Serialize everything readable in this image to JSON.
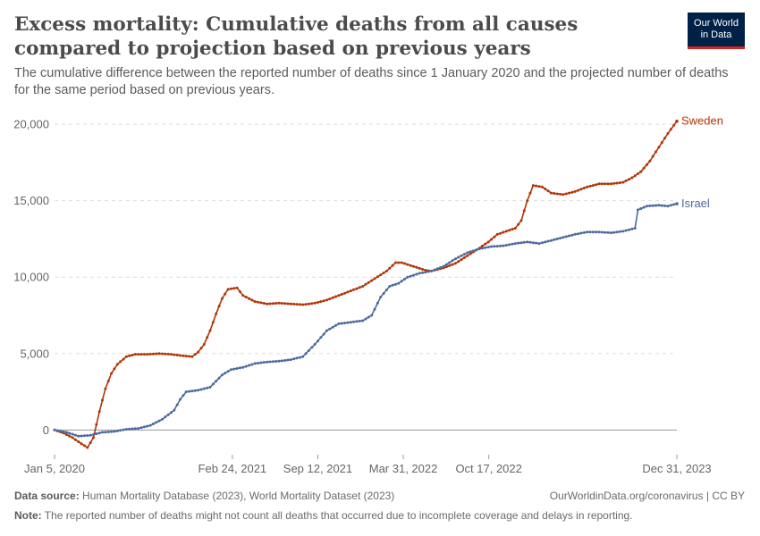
{
  "header": {
    "title": "Excess mortality: Cumulative deaths from all causes compared to projection based on previous years",
    "subtitle": "The cumulative difference between the reported number of deaths since 1 January 2020 and the projected number of deaths for the same period based on previous years.",
    "logo_line1": "Our World",
    "logo_line2": "in Data"
  },
  "footer": {
    "source_label": "Data source:",
    "source_text": "Human Mortality Database (2023), World Mortality Dataset (2023)",
    "credit": "OurWorldinData.org/coronavirus | CC BY",
    "note_label": "Note:",
    "note_text": "The reported number of deaths might not count all deaths that occurred due to incomplete coverage and delays in reporting."
  },
  "colors": {
    "sweden": "#b13507",
    "israel": "#4c6a9c",
    "grid": "#dddddd",
    "axis": "#999999",
    "tick_text": "#666666"
  },
  "chart_data": {
    "type": "line",
    "title": "Excess mortality: Cumulative deaths from all causes compared to projection based on previous years",
    "xlabel": "",
    "ylabel": "",
    "x_range": [
      "2020-01-05",
      "2023-12-31"
    ],
    "ylim": [
      -1500,
      21000
    ],
    "yticks": [
      0,
      5000,
      10000,
      15000,
      20000
    ],
    "ytick_labels": [
      "0",
      "5,000",
      "10,000",
      "15,000",
      "20,000"
    ],
    "xticks": [
      "2020-01-05",
      "2021-02-24",
      "2021-09-12",
      "2022-03-31",
      "2022-10-17",
      "2023-12-31"
    ],
    "xtick_labels": [
      "Jan 5, 2020",
      "Feb 24, 2021",
      "Sep 12, 2021",
      "Mar 31, 2022",
      "Oct 17, 2022",
      "Dec 31, 2023"
    ],
    "grid": "horizontal dashed",
    "legend": "labels at line ends (right)",
    "series": [
      {
        "name": "Sweden",
        "color": "#b13507",
        "points": [
          [
            "2020-01-05",
            0
          ],
          [
            "2020-01-26",
            -200
          ],
          [
            "2020-02-16",
            -500
          ],
          [
            "2020-03-08",
            -900
          ],
          [
            "2020-03-22",
            -1150
          ],
          [
            "2020-04-05",
            -500
          ],
          [
            "2020-04-19",
            1200
          ],
          [
            "2020-05-03",
            2700
          ],
          [
            "2020-05-17",
            3700
          ],
          [
            "2020-05-31",
            4300
          ],
          [
            "2020-06-21",
            4800
          ],
          [
            "2020-07-12",
            4950
          ],
          [
            "2020-08-09",
            4950
          ],
          [
            "2020-09-06",
            5000
          ],
          [
            "2020-10-04",
            4950
          ],
          [
            "2020-11-01",
            4850
          ],
          [
            "2020-11-22",
            4800
          ],
          [
            "2020-12-06",
            5100
          ],
          [
            "2020-12-20",
            5600
          ],
          [
            "2021-01-03",
            6500
          ],
          [
            "2021-01-17",
            7600
          ],
          [
            "2021-01-31",
            8600
          ],
          [
            "2021-02-14",
            9200
          ],
          [
            "2021-03-07",
            9300
          ],
          [
            "2021-03-21",
            8800
          ],
          [
            "2021-04-18",
            8400
          ],
          [
            "2021-05-16",
            8250
          ],
          [
            "2021-06-13",
            8300
          ],
          [
            "2021-07-11",
            8250
          ],
          [
            "2021-08-08",
            8200
          ],
          [
            "2021-09-05",
            8300
          ],
          [
            "2021-10-03",
            8500
          ],
          [
            "2021-10-31",
            8800
          ],
          [
            "2021-11-28",
            9100
          ],
          [
            "2021-12-26",
            9400
          ],
          [
            "2022-01-23",
            9900
          ],
          [
            "2022-02-20",
            10400
          ],
          [
            "2022-03-13",
            10950
          ],
          [
            "2022-03-27",
            10950
          ],
          [
            "2022-04-24",
            10700
          ],
          [
            "2022-05-22",
            10450
          ],
          [
            "2022-06-05",
            10400
          ],
          [
            "2022-07-03",
            10600
          ],
          [
            "2022-07-31",
            10900
          ],
          [
            "2022-08-28",
            11400
          ],
          [
            "2022-09-25",
            11900
          ],
          [
            "2022-10-16",
            12300
          ],
          [
            "2022-11-06",
            12800
          ],
          [
            "2022-11-27",
            13000
          ],
          [
            "2022-12-18",
            13200
          ],
          [
            "2023-01-01",
            13700
          ],
          [
            "2023-01-15",
            15000
          ],
          [
            "2023-01-29",
            16000
          ],
          [
            "2023-02-19",
            15900
          ],
          [
            "2023-03-12",
            15500
          ],
          [
            "2023-04-09",
            15400
          ],
          [
            "2023-05-07",
            15600
          ],
          [
            "2023-06-04",
            15900
          ],
          [
            "2023-07-02",
            16100
          ],
          [
            "2023-07-30",
            16100
          ],
          [
            "2023-08-27",
            16200
          ],
          [
            "2023-09-17",
            16500
          ],
          [
            "2023-10-08",
            16900
          ],
          [
            "2023-10-29",
            17600
          ],
          [
            "2023-11-19",
            18500
          ],
          [
            "2023-12-10",
            19400
          ],
          [
            "2023-12-31",
            20200
          ]
        ]
      },
      {
        "name": "Israel",
        "color": "#4c6a9c",
        "points": [
          [
            "2020-01-05",
            0
          ],
          [
            "2020-02-02",
            -150
          ],
          [
            "2020-03-01",
            -400
          ],
          [
            "2020-03-29",
            -350
          ],
          [
            "2020-04-26",
            -150
          ],
          [
            "2020-05-24",
            -100
          ],
          [
            "2020-06-21",
            50
          ],
          [
            "2020-07-19",
            100
          ],
          [
            "2020-08-16",
            300
          ],
          [
            "2020-09-13",
            700
          ],
          [
            "2020-10-11",
            1300
          ],
          [
            "2020-10-25",
            2000
          ],
          [
            "2020-11-08",
            2500
          ],
          [
            "2020-12-06",
            2600
          ],
          [
            "2021-01-03",
            2800
          ],
          [
            "2021-01-31",
            3600
          ],
          [
            "2021-02-21",
            3950
          ],
          [
            "2021-03-21",
            4100
          ],
          [
            "2021-04-18",
            4350
          ],
          [
            "2021-05-16",
            4450
          ],
          [
            "2021-06-13",
            4500
          ],
          [
            "2021-07-11",
            4600
          ],
          [
            "2021-08-08",
            4800
          ],
          [
            "2021-09-05",
            5600
          ],
          [
            "2021-10-03",
            6500
          ],
          [
            "2021-10-31",
            6950
          ],
          [
            "2021-11-28",
            7050
          ],
          [
            "2021-12-26",
            7150
          ],
          [
            "2022-01-16",
            7500
          ],
          [
            "2022-02-06",
            8700
          ],
          [
            "2022-02-27",
            9400
          ],
          [
            "2022-03-20",
            9600
          ],
          [
            "2022-04-10",
            10000
          ],
          [
            "2022-05-08",
            10250
          ],
          [
            "2022-06-05",
            10400
          ],
          [
            "2022-07-03",
            10700
          ],
          [
            "2022-07-31",
            11200
          ],
          [
            "2022-08-28",
            11600
          ],
          [
            "2022-09-25",
            11850
          ],
          [
            "2022-10-23",
            12000
          ],
          [
            "2022-11-20",
            12050
          ],
          [
            "2022-12-18",
            12200
          ],
          [
            "2023-01-15",
            12300
          ],
          [
            "2023-02-12",
            12200
          ],
          [
            "2023-03-12",
            12400
          ],
          [
            "2023-04-09",
            12600
          ],
          [
            "2023-05-07",
            12800
          ],
          [
            "2023-06-04",
            12950
          ],
          [
            "2023-07-02",
            12950
          ],
          [
            "2023-07-30",
            12900
          ],
          [
            "2023-08-27",
            13000
          ],
          [
            "2023-09-24",
            13200
          ],
          [
            "2023-10-01",
            14400
          ],
          [
            "2023-10-22",
            14650
          ],
          [
            "2023-11-19",
            14700
          ],
          [
            "2023-12-10",
            14650
          ],
          [
            "2023-12-31",
            14800
          ]
        ]
      }
    ]
  }
}
